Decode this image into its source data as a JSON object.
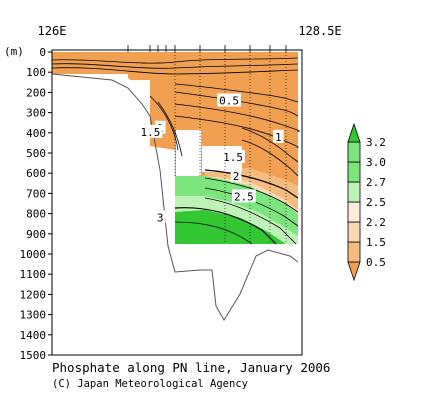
{
  "chart_data": {
    "type": "heatmap",
    "title": "Phosphate along PN line, January 2006",
    "credit": "(C) Japan Meteorological Agency",
    "x_axis": {
      "range": [
        126,
        128.5
      ],
      "tick_labels": [
        "126E",
        "128.5E"
      ]
    },
    "y_axis": {
      "label": "(m)",
      "range": [
        0,
        1500
      ],
      "inverted": true,
      "ticks": [
        0,
        100,
        200,
        300,
        400,
        500,
        600,
        700,
        800,
        900,
        1000,
        1100,
        1200,
        1300,
        1400,
        1500
      ]
    },
    "colorbar": {
      "levels": [
        "0.5",
        "1.5",
        "2.2",
        "2.5",
        "2.7",
        "3.0",
        "3.2"
      ],
      "colors": [
        "#f0a050",
        "#f5bc80",
        "#fad8b4",
        "#fdecdc",
        "#bff2b8",
        "#7de57d",
        "#33c833"
      ]
    },
    "contour_labels": [
      {
        "text": "0.5",
        "lon": 127.8,
        "depth": 240
      },
      {
        "text": "1",
        "lon": 127.1,
        "depth": 375
      },
      {
        "text": "1.5",
        "lon": 127.0,
        "depth": 395
      },
      {
        "text": "1",
        "lon": 128.3,
        "depth": 420
      },
      {
        "text": "1.5",
        "lon": 127.84,
        "depth": 520
      },
      {
        "text": "2",
        "lon": 127.87,
        "depth": 615
      },
      {
        "text": "2.5",
        "lon": 127.95,
        "depth": 715
      },
      {
        "text": "3",
        "lon": 127.1,
        "depth": 820
      }
    ]
  }
}
